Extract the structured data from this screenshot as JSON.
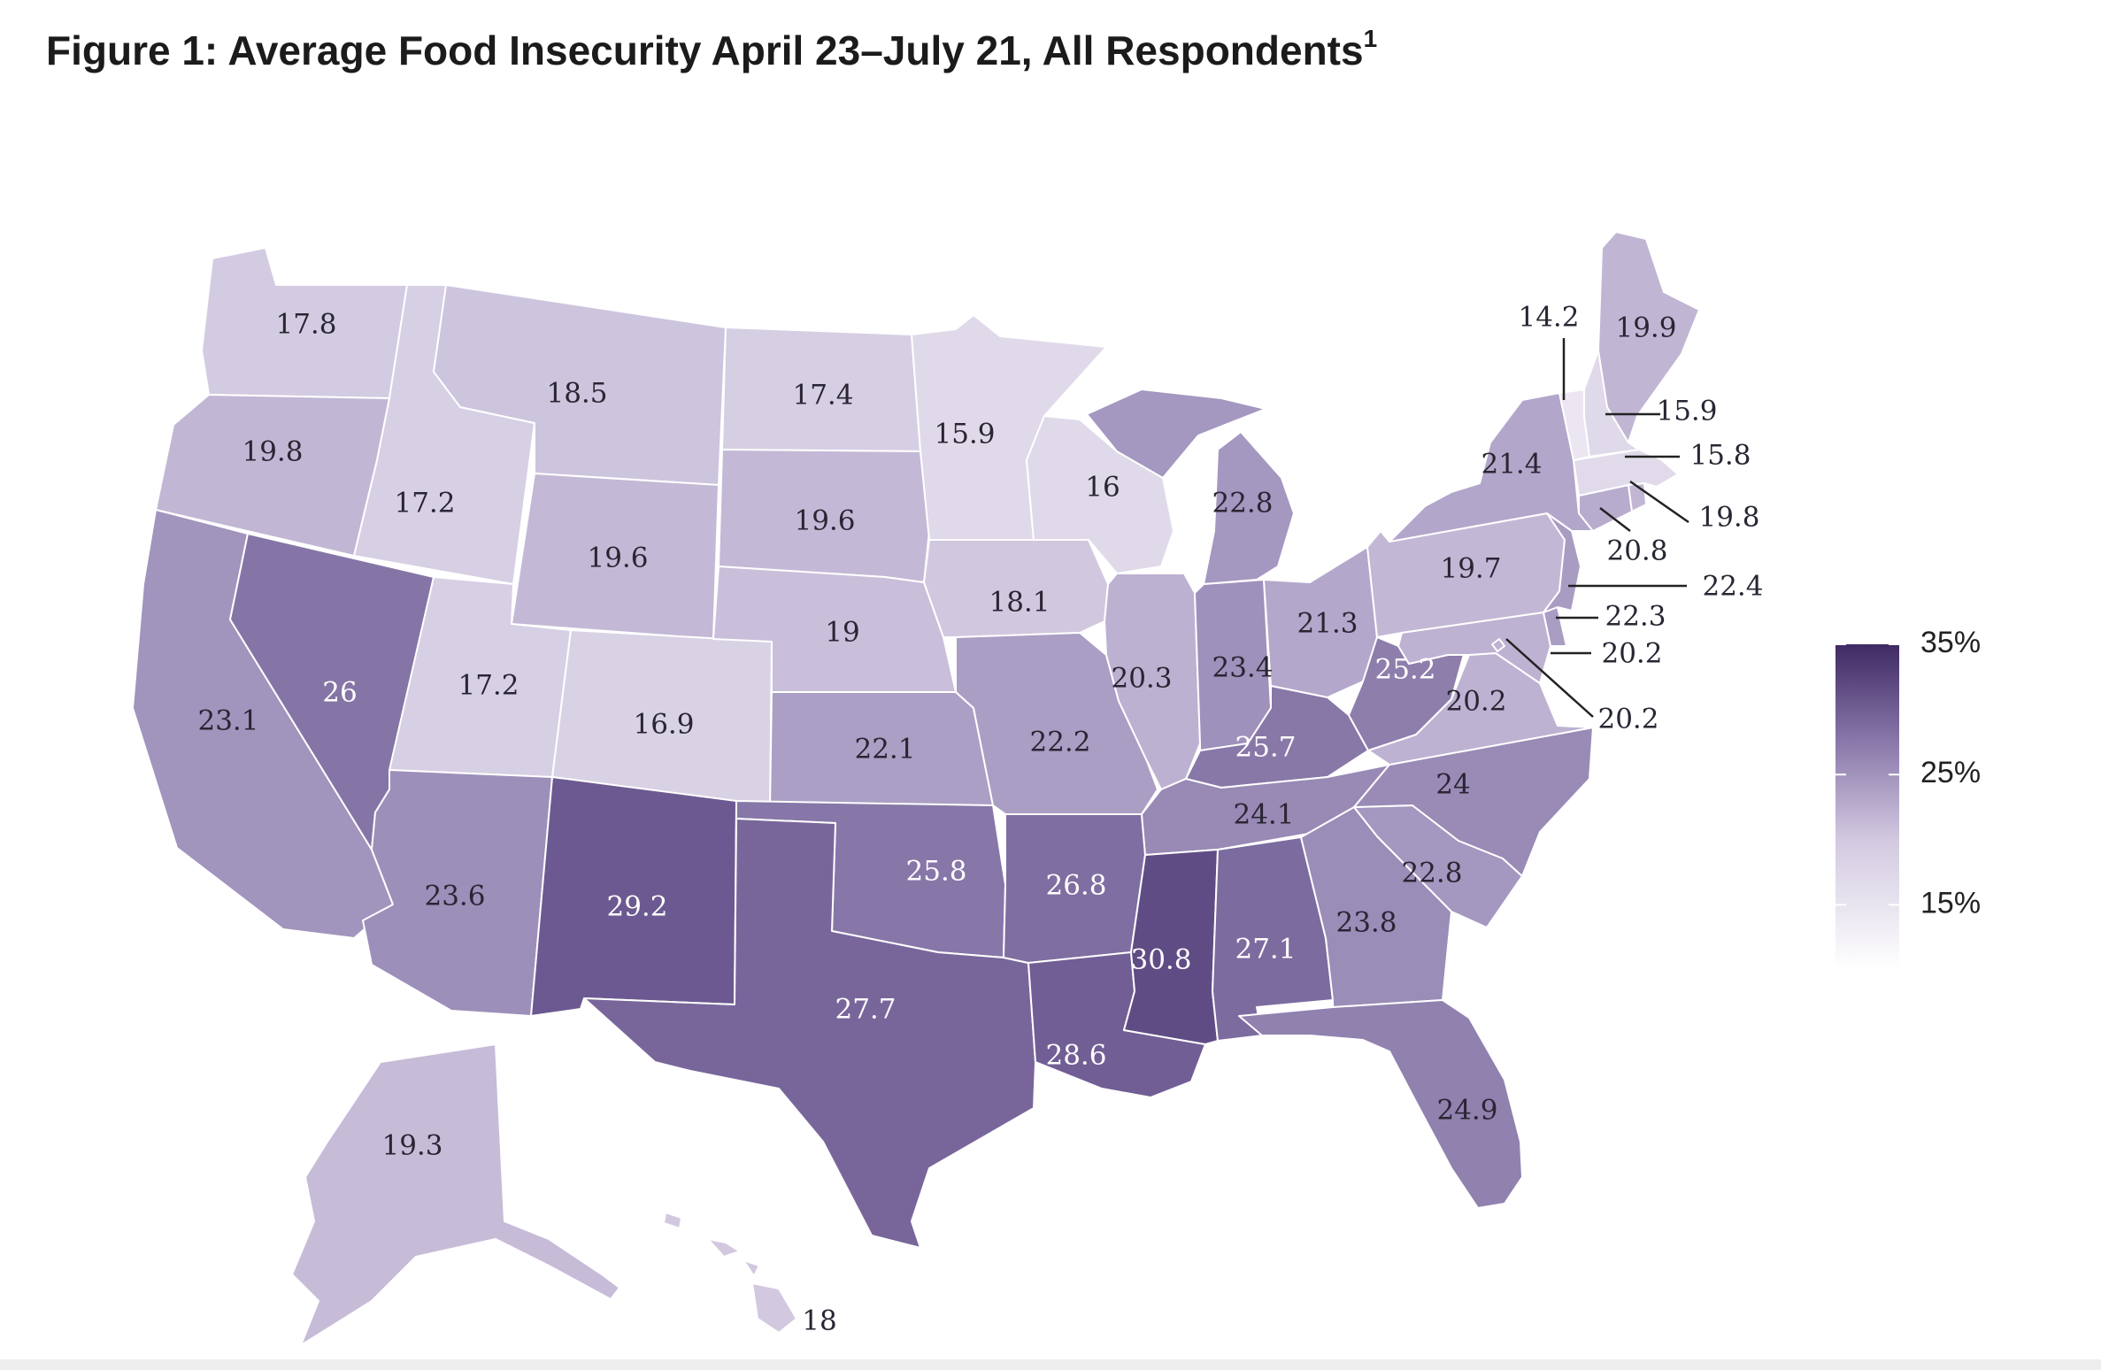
{
  "title": "Figure 1: Average Food Insecurity April 23–July 21, All Respondents",
  "title_superscript": "1",
  "colors": {
    "low": "#f7f5fa",
    "high": "#3f2a63",
    "dark_text": "#2a2533",
    "light_text": "#ffffff"
  },
  "legend": {
    "min": 10,
    "max": 35,
    "ticks": [
      {
        "value": 35,
        "label": "35%"
      },
      {
        "value": 25,
        "label": "25%"
      },
      {
        "value": 15,
        "label": "15%"
      }
    ]
  },
  "states": {
    "WA": {
      "name": "Washington",
      "value": 17.8,
      "label": "17.8"
    },
    "OR": {
      "name": "Oregon",
      "value": 19.8,
      "label": "19.8"
    },
    "CA": {
      "name": "California",
      "value": 23.1,
      "label": "23.1"
    },
    "NV": {
      "name": "Nevada",
      "value": 26,
      "label": "26"
    },
    "ID": {
      "name": "Idaho",
      "value": 17.2,
      "label": "17.2"
    },
    "MT": {
      "name": "Montana",
      "value": 18.5,
      "label": "18.5"
    },
    "WY": {
      "name": "Wyoming",
      "value": 19.6,
      "label": "19.6"
    },
    "UT": {
      "name": "Utah",
      "value": 17.2,
      "label": "17.2"
    },
    "AZ": {
      "name": "Arizona",
      "value": 23.6,
      "label": "23.6"
    },
    "CO": {
      "name": "Colorado",
      "value": 16.9,
      "label": "16.9"
    },
    "NM": {
      "name": "New Mexico",
      "value": 29.2,
      "label": "29.2"
    },
    "ND": {
      "name": "North Dakota",
      "value": 17.4,
      "label": "17.4"
    },
    "SD": {
      "name": "South Dakota",
      "value": 19.6,
      "label": "19.6"
    },
    "NE": {
      "name": "Nebraska",
      "value": 19,
      "label": "19"
    },
    "KS": {
      "name": "Kansas",
      "value": 22.1,
      "label": "22.1"
    },
    "OK": {
      "name": "Oklahoma",
      "value": 25.8,
      "label": "25.8"
    },
    "TX": {
      "name": "Texas",
      "value": 27.7,
      "label": "27.7"
    },
    "MN": {
      "name": "Minnesota",
      "value": 15.9,
      "label": "15.9"
    },
    "IA": {
      "name": "Iowa",
      "value": 18.1,
      "label": "18.1"
    },
    "MO": {
      "name": "Missouri",
      "value": 22.2,
      "label": "22.2"
    },
    "AR": {
      "name": "Arkansas",
      "value": 26.8,
      "label": "26.8"
    },
    "LA": {
      "name": "Louisiana",
      "value": 28.6,
      "label": "28.6"
    },
    "WI": {
      "name": "Wisconsin",
      "value": 16,
      "label": "16"
    },
    "IL": {
      "name": "Illinois",
      "value": 20.3,
      "label": "20.3"
    },
    "MI": {
      "name": "Michigan",
      "value": 22.8,
      "label": "22.8"
    },
    "IN": {
      "name": "Indiana",
      "value": 23.4,
      "label": "23.4"
    },
    "OH": {
      "name": "Ohio",
      "value": 21.3,
      "label": "21.3"
    },
    "KY": {
      "name": "Kentucky",
      "value": 25.7,
      "label": "25.7"
    },
    "TN": {
      "name": "Tennessee",
      "value": 24.1,
      "label": "24.1"
    },
    "MS": {
      "name": "Mississippi",
      "value": 30.8,
      "label": "30.8"
    },
    "AL": {
      "name": "Alabama",
      "value": 27.1,
      "label": "27.1"
    },
    "GA": {
      "name": "Georgia",
      "value": 23.8,
      "label": "23.8"
    },
    "FL": {
      "name": "Florida",
      "value": 24.9,
      "label": "24.9"
    },
    "SC": {
      "name": "South Carolina",
      "value": 22.8,
      "label": "22.8"
    },
    "NC": {
      "name": "North Carolina",
      "value": 24,
      "label": "24"
    },
    "VA": {
      "name": "Virginia",
      "value": 20.2,
      "label": "20.2"
    },
    "WV": {
      "name": "West Virginia",
      "value": 25.2,
      "label": "25.2"
    },
    "PA": {
      "name": "Pennsylvania",
      "value": 19.7,
      "label": "19.7"
    },
    "NY": {
      "name": "New York",
      "value": 21.4,
      "label": "21.4"
    },
    "VT": {
      "name": "Vermont",
      "value": 14.2,
      "label": "14.2"
    },
    "NH": {
      "name": "New Hampshire",
      "value": 15.9,
      "label": "15.9"
    },
    "ME": {
      "name": "Maine",
      "value": 19.9,
      "label": "19.9"
    },
    "MA": {
      "name": "Massachusetts",
      "value": 15.8,
      "label": "15.8"
    },
    "RI": {
      "name": "Rhode Island",
      "value": 19.8,
      "label": "19.8"
    },
    "CT": {
      "name": "Connecticut",
      "value": 20.8,
      "label": "20.8"
    },
    "NJ": {
      "name": "New Jersey",
      "value": 22.4,
      "label": "22.4"
    },
    "DE": {
      "name": "Delaware",
      "value": 22.3,
      "label": "22.3"
    },
    "MD": {
      "name": "Maryland",
      "value": 20.2,
      "label": "20.2"
    },
    "DC": {
      "name": "District of Columbia",
      "value": 20.2,
      "label": "20.2"
    },
    "AK": {
      "name": "Alaska",
      "value": 19.3,
      "label": "19.3"
    },
    "HI": {
      "name": "Hawaii",
      "value": 18,
      "label": "18"
    }
  }
}
